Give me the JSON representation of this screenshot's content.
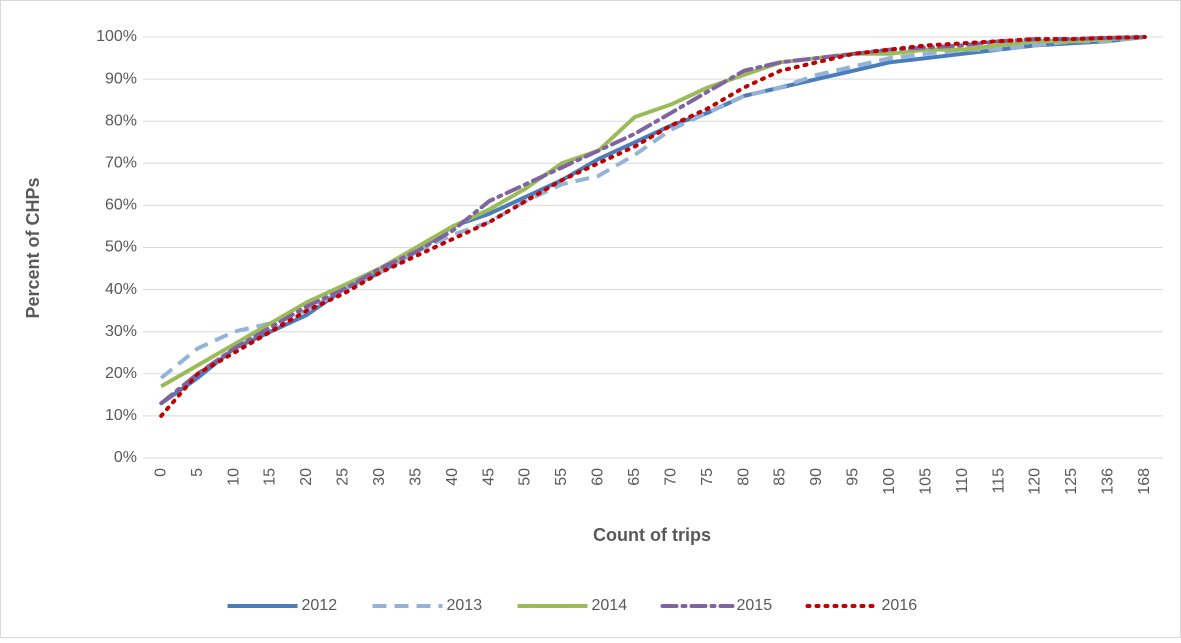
{
  "chart_data": {
    "type": "line",
    "x_label": "Count of trips",
    "y_label": "Percent of CHPs",
    "categories": [
      "0",
      "5",
      "10",
      "15",
      "20",
      "25",
      "30",
      "35",
      "40",
      "45",
      "50",
      "55",
      "60",
      "65",
      "70",
      "75",
      "80",
      "85",
      "90",
      "95",
      "100",
      "105",
      "110",
      "115",
      "120",
      "125",
      "136",
      "168"
    ],
    "ylim": [
      0,
      100
    ],
    "yticks": [
      {
        "value": 0,
        "label": "0%"
      },
      {
        "value": 10,
        "label": "10%"
      },
      {
        "value": 20,
        "label": "20%"
      },
      {
        "value": 30,
        "label": "30%"
      },
      {
        "value": 40,
        "label": "40%"
      },
      {
        "value": 50,
        "label": "50%"
      },
      {
        "value": 60,
        "label": "60%"
      },
      {
        "value": 70,
        "label": "70%"
      },
      {
        "value": 80,
        "label": "80%"
      },
      {
        "value": 90,
        "label": "90%"
      },
      {
        "value": 100,
        "label": "100%"
      }
    ],
    "grid": true,
    "legend": "bottom",
    "series": [
      {
        "name": "2012",
        "color": "#4a7ebb",
        "dash": "solid",
        "values": [
          13,
          19,
          26,
          30,
          34,
          40,
          44,
          49,
          55,
          58,
          62,
          66,
          71,
          75,
          79,
          82,
          86,
          88,
          90,
          92,
          94,
          95,
          96,
          97,
          98,
          98.5,
          99,
          100
        ]
      },
      {
        "name": "2013",
        "color": "#95b3d7",
        "dash": "dash",
        "values": [
          19,
          26,
          30,
          32,
          35,
          40,
          44,
          49,
          53,
          56,
          61,
          65,
          67,
          72,
          78,
          82,
          86,
          88,
          91,
          93,
          95,
          96,
          97,
          97,
          98,
          99,
          99,
          100
        ]
      },
      {
        "name": "2014",
        "color": "#9bbb59",
        "dash": "solid",
        "values": [
          17,
          22,
          27,
          32,
          37,
          41,
          45,
          50,
          55,
          59,
          64,
          70,
          73,
          81,
          84,
          88,
          91,
          94,
          95,
          96,
          96,
          97,
          97,
          98,
          99,
          99,
          99.5,
          100
        ]
      },
      {
        "name": "2015",
        "color": "#8064a2",
        "dash": "dashdot",
        "values": [
          13,
          20,
          26,
          31,
          36,
          40,
          45,
          49,
          54,
          61,
          65,
          69,
          73,
          77,
          82,
          87,
          92,
          94,
          95,
          96,
          97,
          97.5,
          98,
          99,
          99.5,
          99.5,
          99.8,
          100
        ]
      },
      {
        "name": "2016",
        "color": "#c00000",
        "dash": "dot",
        "values": [
          10,
          20,
          25,
          30,
          35,
          39,
          44,
          48,
          52,
          56,
          61,
          66,
          70,
          74,
          79,
          83,
          88,
          92,
          94,
          96,
          97,
          98,
          98.5,
          99,
          99.5,
          99.5,
          99.8,
          100
        ]
      }
    ]
  }
}
